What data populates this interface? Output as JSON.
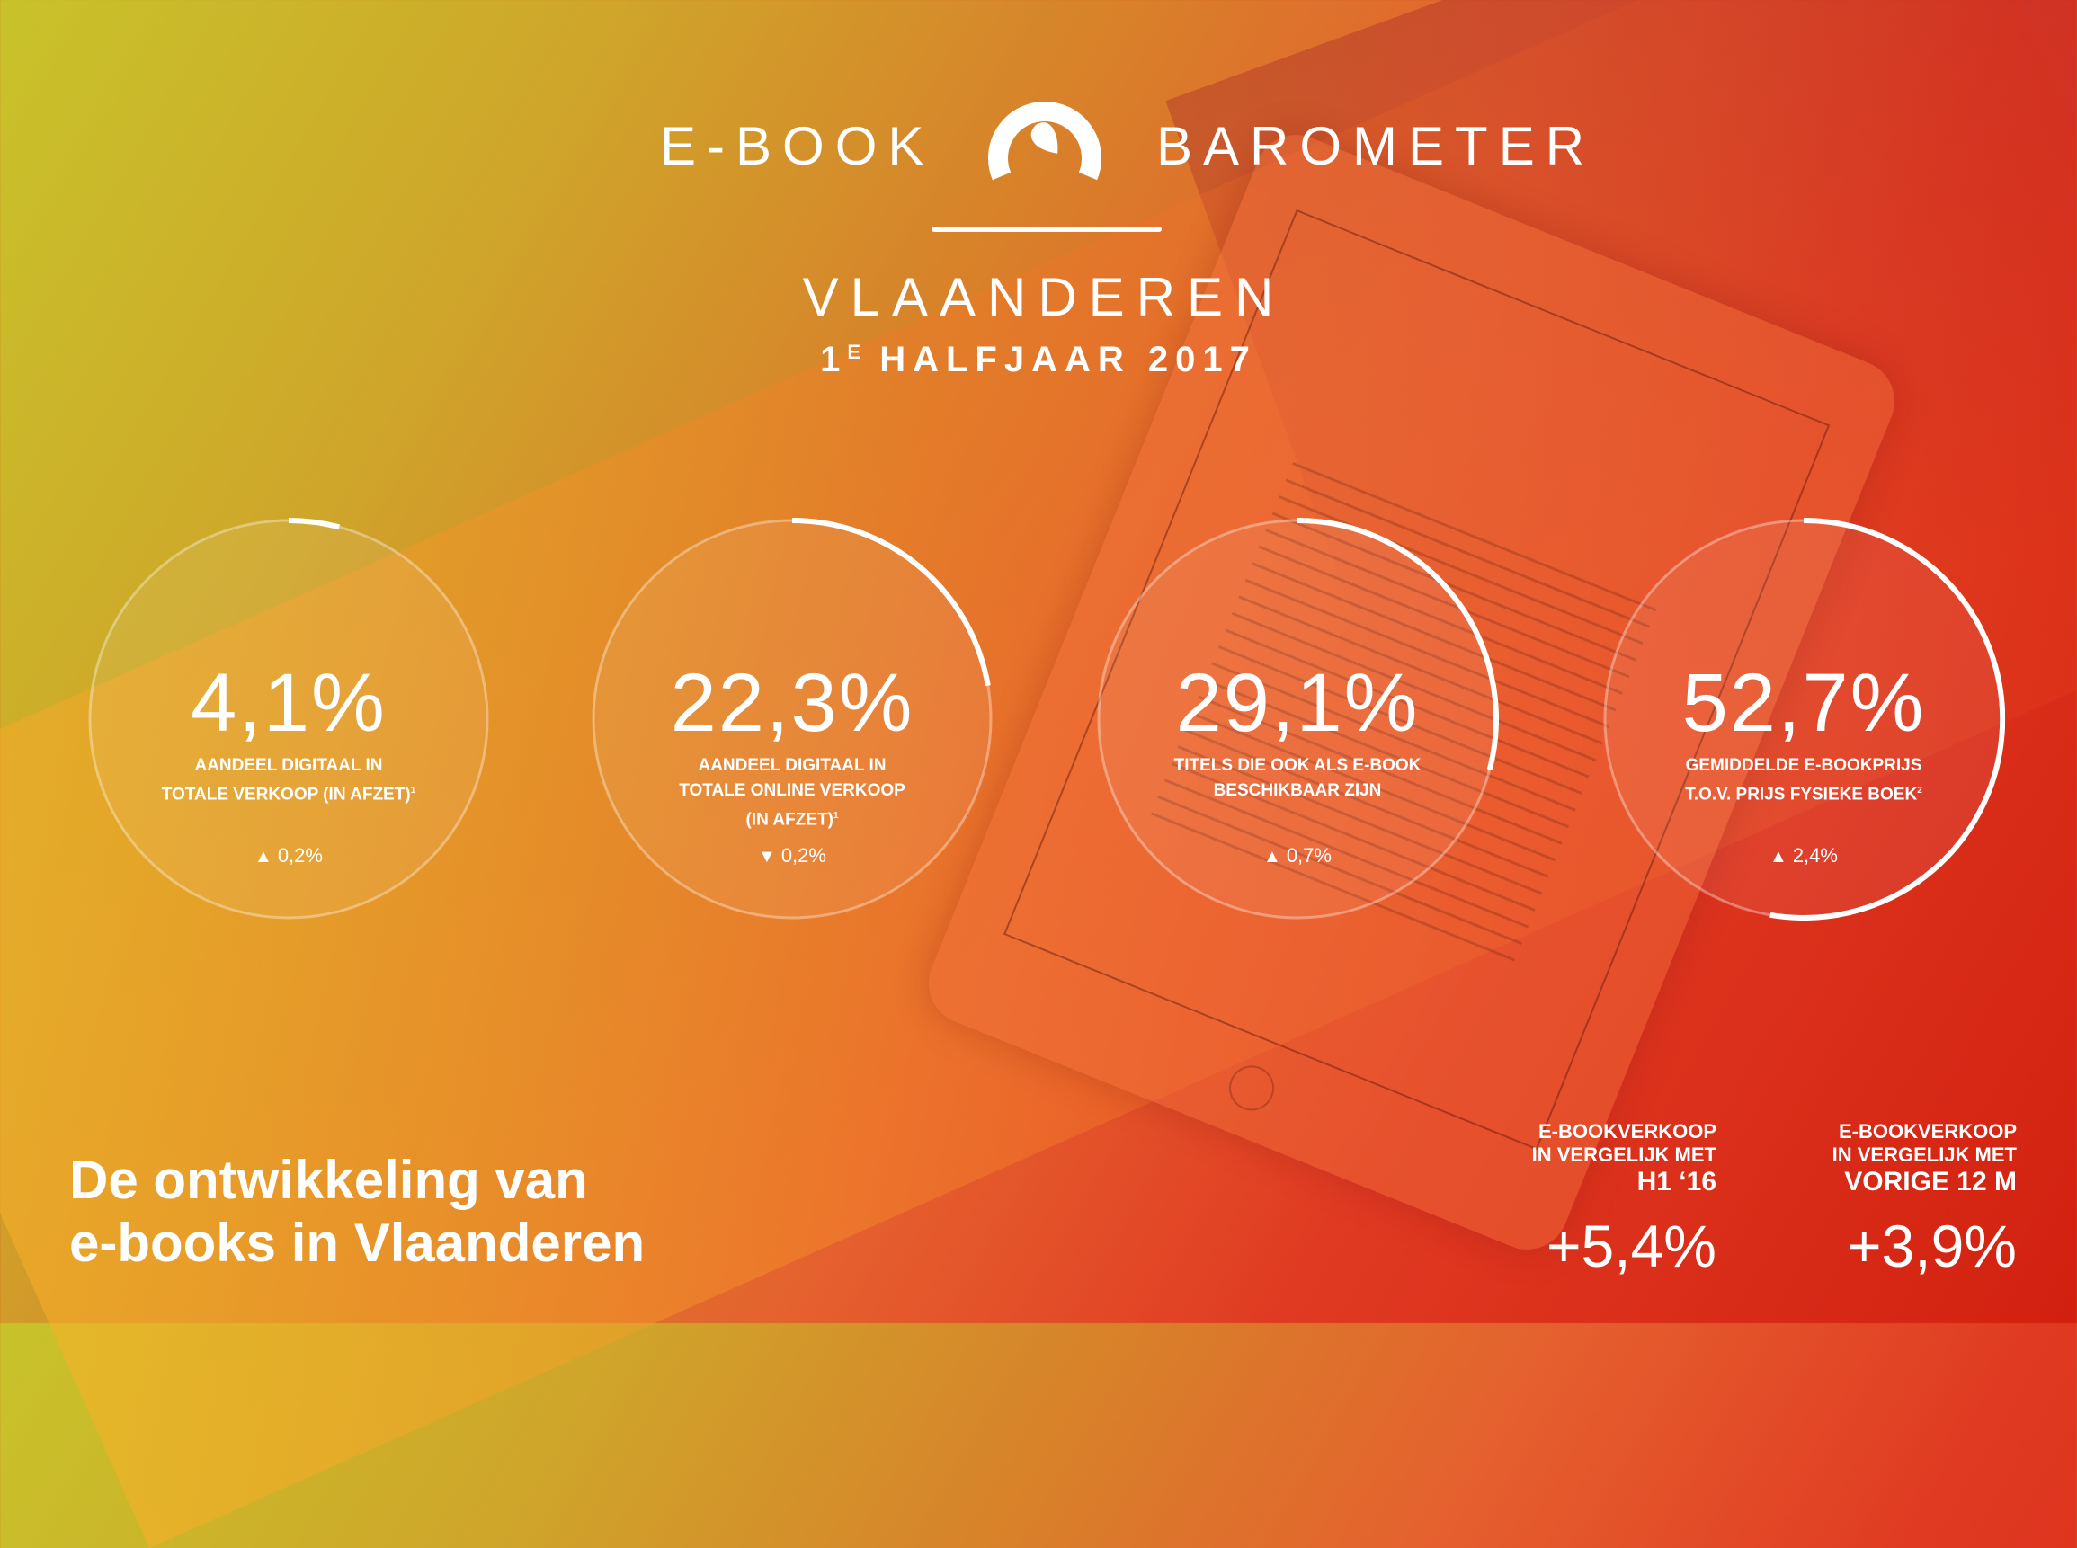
{
  "header": {
    "left_word": "E-BOOK",
    "right_word": "BAROMETER",
    "logo_icon": "gauge-arch-icon",
    "region": "VLAANDEREN",
    "period_number": "1",
    "period_sup": "E",
    "period_text": "HALFJAAR 2017"
  },
  "stats": [
    {
      "value": "4,1%",
      "percent": 4.1,
      "label_lines": [
        "AANDEEL DIGITAAL IN",
        "TOTALE VERKOOP (IN AFZET)"
      ],
      "footnote": "1",
      "direction": "up",
      "change": "0,2%"
    },
    {
      "value": "22,3%",
      "percent": 22.3,
      "label_lines": [
        "AANDEEL DIGITAAL IN",
        "TOTALE ONLINE VERKOOP",
        "(IN AFZET)"
      ],
      "footnote": "1",
      "direction": "down",
      "change": "0,2%"
    },
    {
      "value": "29,1%",
      "percent": 29.1,
      "label_lines": [
        "TITELS DIE OOK ALS E-BOOK",
        "BESCHIKBAAR ZIJN"
      ],
      "footnote": "",
      "direction": "up",
      "change": "0,7%"
    },
    {
      "value": "52,7%",
      "percent": 52.7,
      "label_lines": [
        "GEMIDDELDE E-BOOKPRIJS",
        "T.O.V. PRIJS FYSIEKE BOEK"
      ],
      "footnote": "2",
      "direction": "up",
      "change": "2,4%"
    }
  ],
  "title_lines": [
    "De ontwikkeling van",
    "e-books in Vlaanderen"
  ],
  "comparisons": [
    {
      "line1": "E-BOOKVERKOOP",
      "line2": "IN VERGELIJK MET",
      "line3": "H1 ‘16",
      "value": "+5,4%"
    },
    {
      "line1": "E-BOOKVERKOOP",
      "line2": "IN VERGELIJK MET",
      "line3": "VORIGE 12 M",
      "value": "+3,9%"
    }
  ],
  "colors": {
    "gradient_start": "#c8c32a",
    "gradient_mid": "#e5602e",
    "gradient_end": "#d2200f",
    "text": "#ffffff"
  }
}
